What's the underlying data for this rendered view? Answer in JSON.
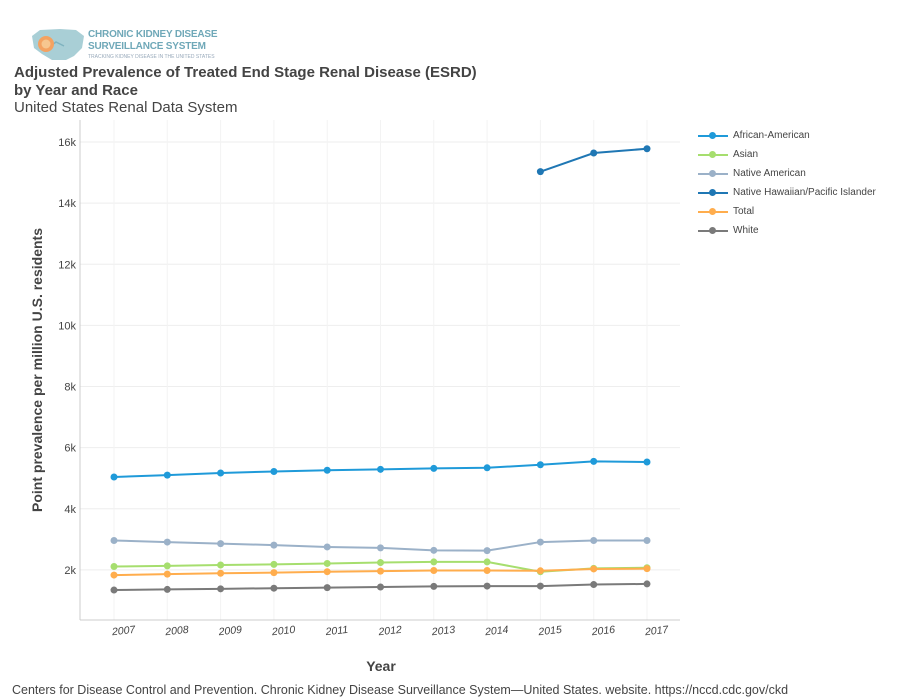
{
  "header": {
    "logo_line1": "CHRONIC KIDNEY DISEASE",
    "logo_line2": "SURVEILLANCE SYSTEM",
    "logo_line3": "TRACKING KIDNEY DISEASE IN THE UNITED STATES",
    "title_line1": "Adjusted Prevalence of Treated End Stage Renal Disease (ESRD)",
    "title_line2": "by Year and Race",
    "subtitle": "United States Renal Data System"
  },
  "footer": {
    "source": "Centers for Disease Control and Prevention. Chronic Kidney Disease Surveillance System—United States. website. https://nccd.cdc.gov/ckd"
  },
  "chart_data": {
    "type": "line",
    "title": "Adjusted Prevalence of Treated End Stage Renal Disease (ESRD) by Year and Race",
    "subtitle": "United States Renal Data System",
    "xlabel": "Year",
    "ylabel": "Point prevalence per million U.S. residents",
    "x": [
      "2007",
      "2008",
      "2009",
      "2010",
      "2011",
      "2012",
      "2013",
      "2014",
      "2015",
      "2016",
      "2017"
    ],
    "ylim": [
      0,
      16000
    ],
    "yticks": [
      2000,
      4000,
      6000,
      8000,
      10000,
      12000,
      14000,
      16000
    ],
    "ytick_labels": [
      "2k",
      "4k",
      "6k",
      "8k",
      "10k",
      "12k",
      "14k",
      "16k"
    ],
    "grid": true,
    "legend_position": "right",
    "series": [
      {
        "name": "African-American",
        "color": "#1f9ad9",
        "values": [
          5040,
          5100,
          5170,
          5220,
          5260,
          5290,
          5320,
          5340,
          5440,
          5550,
          5530
        ]
      },
      {
        "name": "Asian",
        "color": "#a6de6e",
        "values": [
          2110,
          2130,
          2160,
          2180,
          2210,
          2240,
          2260,
          2260,
          1940,
          2050,
          2070
        ]
      },
      {
        "name": "Native American",
        "color": "#9bb1c8",
        "values": [
          2960,
          2910,
          2860,
          2810,
          2750,
          2720,
          2640,
          2630,
          2910,
          2960,
          2960
        ]
      },
      {
        "name": "Native Hawaiian/Pacific Islander",
        "color": "#1f77b4",
        "values": [
          null,
          null,
          null,
          null,
          null,
          null,
          null,
          null,
          15030,
          15640,
          15780
        ]
      },
      {
        "name": "Total",
        "color": "#ffad4d",
        "values": [
          1830,
          1860,
          1890,
          1910,
          1940,
          1960,
          1980,
          1980,
          1970,
          2030,
          2040
        ]
      },
      {
        "name": "White",
        "color": "#7a7a7a",
        "values": [
          1340,
          1360,
          1380,
          1400,
          1420,
          1440,
          1460,
          1470,
          1470,
          1520,
          1540
        ]
      }
    ]
  }
}
